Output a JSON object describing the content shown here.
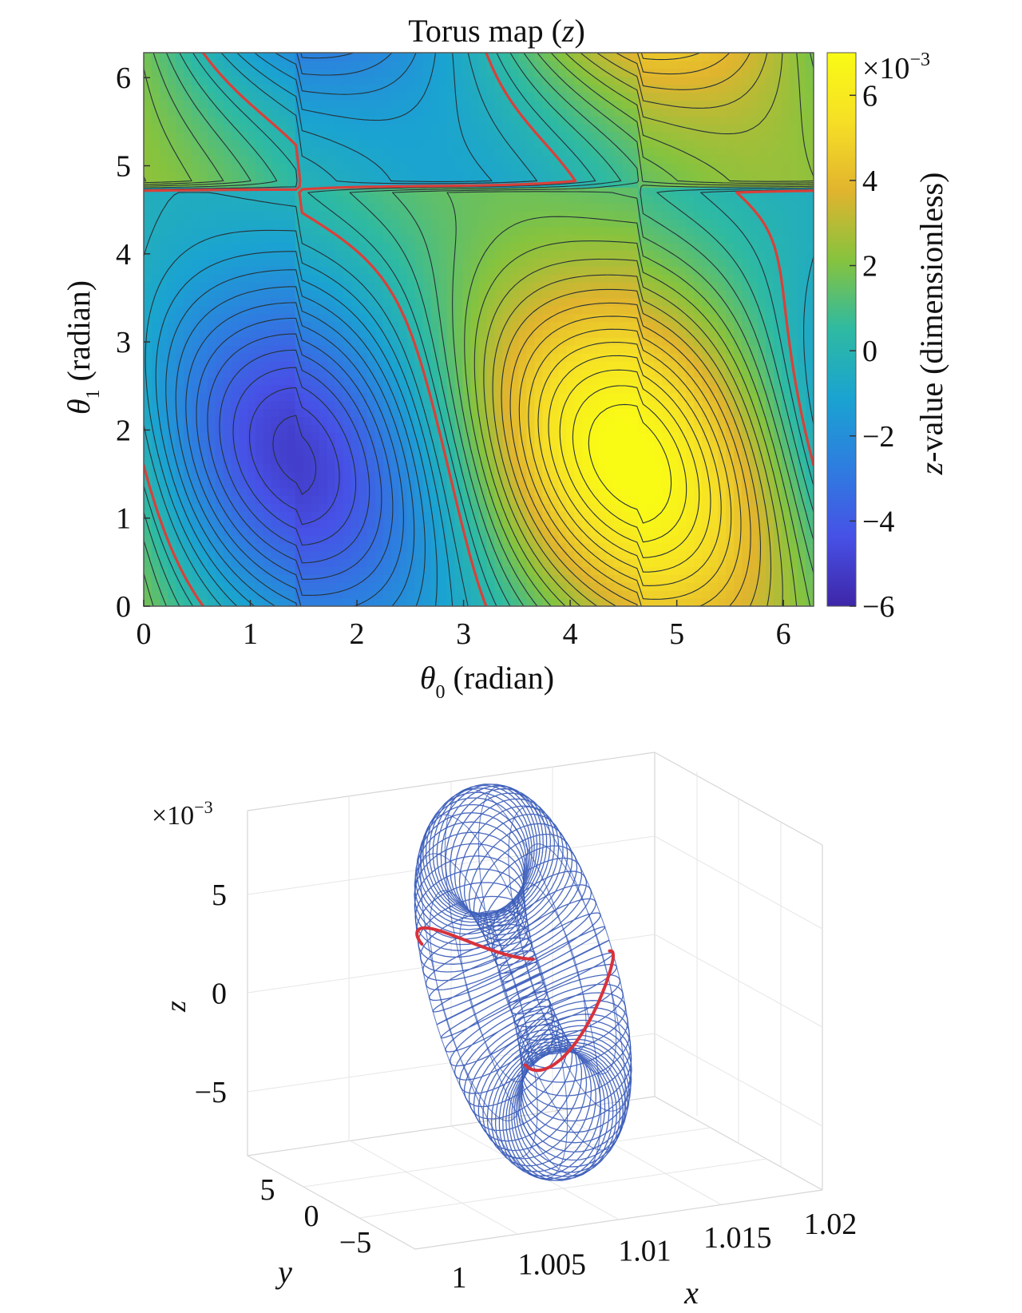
{
  "contour_chart": {
    "type": "heatmap",
    "title_main": "Torus map (",
    "title_var": "z",
    "title_close": ")",
    "xlabel_sym": "θ",
    "xlabel_sub": "0",
    "xlabel_unit": " (radian)",
    "ylabel_sym": "θ",
    "ylabel_sub": "1",
    "ylabel_unit": " (radian)",
    "xlim": [
      0,
      6.2832
    ],
    "ylim": [
      0,
      6.2832
    ],
    "x_ticks": [
      {
        "v": 0,
        "label": "0"
      },
      {
        "v": 1,
        "label": "1"
      },
      {
        "v": 2,
        "label": "2"
      },
      {
        "v": 3,
        "label": "3"
      },
      {
        "v": 4,
        "label": "4"
      },
      {
        "v": 5,
        "label": "5"
      },
      {
        "v": 6,
        "label": "6"
      }
    ],
    "y_ticks": [
      {
        "v": 0,
        "label": "0"
      },
      {
        "v": 1,
        "label": "1"
      },
      {
        "v": 2,
        "label": "2"
      },
      {
        "v": 3,
        "label": "3"
      },
      {
        "v": 4,
        "label": "4"
      },
      {
        "v": 5,
        "label": "5"
      },
      {
        "v": 6,
        "label": "6"
      }
    ],
    "colorbar": {
      "multiplier_base": "×10",
      "multiplier_exp": "−3",
      "label_var": "z",
      "label_text": "-value (dimensionless)",
      "range": [
        -6,
        7
      ],
      "ticks": [
        {
          "v": 6,
          "label": "6"
        },
        {
          "v": 4,
          "label": "4"
        },
        {
          "v": 2,
          "label": "2"
        },
        {
          "v": 0,
          "label": "0"
        },
        {
          "v": -2,
          "label": "−2"
        },
        {
          "v": -4,
          "label": "−4"
        },
        {
          "v": -6,
          "label": "−6"
        }
      ],
      "colormap": [
        "#3e26a8",
        "#4751e6",
        "#2e7de0",
        "#1aa3d1",
        "#2ebaa2",
        "#86c33e",
        "#e1b42e",
        "#f6df26",
        "#f9fb15"
      ]
    },
    "field_centers": {
      "min": {
        "theta0": 1.5,
        "theta1": 1.65,
        "z": -5.9
      },
      "max": {
        "theta0": 4.6,
        "theta1": 1.6,
        "z": 6.9
      }
    },
    "zero_contour_color": "#d9403a",
    "contour_color": "#263238"
  },
  "torus_plot": {
    "type": "3d-wireframe",
    "multiplier_base": "×10",
    "multiplier_exp": "−3",
    "z_label": "z",
    "y_label": "y",
    "x_label": "x",
    "z_ticks": [
      {
        "v": 5,
        "label": "5"
      },
      {
        "v": 0,
        "label": "0"
      },
      {
        "v": -5,
        "label": "−5"
      }
    ],
    "y_ticks": [
      {
        "v": 5,
        "label": "5"
      },
      {
        "v": 0,
        "label": "0"
      },
      {
        "v": -5,
        "label": "−5"
      }
    ],
    "x_ticks": [
      {
        "v": 1,
        "label": "1"
      },
      {
        "v": 1.005,
        "label": "1.005"
      },
      {
        "v": 1.01,
        "label": "1.01"
      },
      {
        "v": 1.015,
        "label": "1.015"
      },
      {
        "v": 1.02,
        "label": "1.02"
      }
    ],
    "mesh_color": "#2a4fb4",
    "curve_color": "#d8323c"
  }
}
